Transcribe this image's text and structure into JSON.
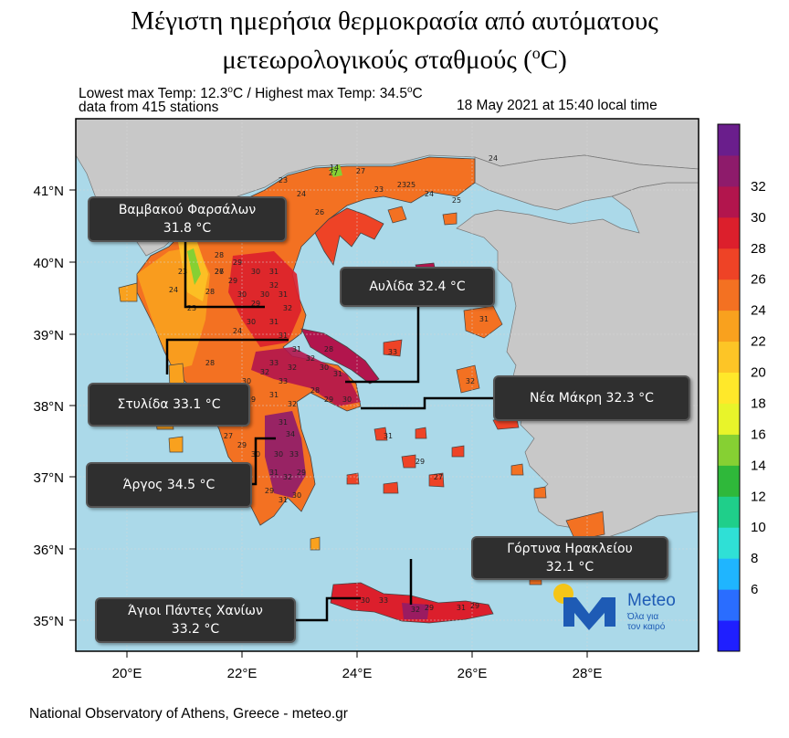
{
  "title": {
    "line1": "Μέγιστη ημερήσια θερμοκρασία από αυτόματους",
    "line2": "μετεωρολογικούς σταθμούς (",
    "unit_sup": "o",
    "unit": "C)"
  },
  "subtitle": {
    "temps_a": "Lowest max Temp: 12.3",
    "temps_b": "C / Highest max Temp: 34.5",
    "temps_c": "C",
    "deg": "o",
    "stations": "data from 415 stations",
    "datetime": "18 May 2021 at 15:40 local time"
  },
  "map": {
    "lat_labels": [
      "41°N",
      "40°N",
      "39°N",
      "38°N",
      "37°N",
      "36°N",
      "35°N"
    ],
    "lon_labels": [
      "20°E",
      "22°E",
      "24°E",
      "26°E",
      "28°E"
    ],
    "colors": {
      "sea": "#abd9e9",
      "neighbor_land": "#c8c8c8",
      "frame": "#000000"
    }
  },
  "colorbar": {
    "labels": [
      "32",
      "30",
      "28",
      "26",
      "24",
      "22",
      "20",
      "18",
      "16",
      "14",
      "12",
      "10",
      "8",
      "6"
    ],
    "colors": [
      "#1f1fff",
      "#2a6dff",
      "#1fb5ff",
      "#2fe0d6",
      "#1fcf8a",
      "#2fb83a",
      "#86d033",
      "#e8f42a",
      "#ffe82a",
      "#fdc526",
      "#f9a11e",
      "#f37122",
      "#ee4326",
      "#dc1f2c",
      "#b2154d",
      "#8e1b6b",
      "#6a1e8c"
    ]
  },
  "callouts": [
    {
      "line1": "Βαμβακού Φαρσάλων",
      "line2": "31.8 °C"
    },
    {
      "line1": "Αυλίδα  32.4 °C",
      "line2": ""
    },
    {
      "line1": "Στυλίδα  33.1 °C",
      "line2": ""
    },
    {
      "line1": "Νέα Μάκρη 32.3 °C",
      "line2": ""
    },
    {
      "line1": "Άργος  34.5 °C",
      "line2": ""
    },
    {
      "line1": "Γόρτυνα  Ηρακλείου",
      "line2": "32.1 °C"
    },
    {
      "line1": "Άγιοι Πάντες Χανίων",
      "line2": "33.2 °C"
    }
  ],
  "logo": {
    "name": "Meteo",
    "tagline_1": "Όλα για",
    "tagline_2": "τον καιρό"
  },
  "station_values": [
    "27",
    "23",
    "25",
    "14",
    "24",
    "25",
    "23",
    "24",
    "27",
    "26",
    "23",
    "24",
    "28",
    "29",
    "30",
    "31",
    "32",
    "30",
    "29",
    "27",
    "31",
    "23",
    "24",
    "29",
    "28",
    "30",
    "32",
    "31",
    "30",
    "24",
    "31",
    "31",
    "32",
    "28",
    "30",
    "31",
    "33",
    "32",
    "33",
    "32",
    "30",
    "28",
    "29",
    "30",
    "31",
    "32",
    "29",
    "31",
    "34",
    "33",
    "30",
    "31",
    "32",
    "29",
    "30",
    "29",
    "31",
    "30",
    "26",
    "23",
    "28",
    "32",
    "27",
    "29",
    "24",
    "30",
    "31",
    "32",
    "33",
    "31",
    "29",
    "27",
    "30",
    "33",
    "29",
    "32",
    "31",
    "29"
  ],
  "footer": "National Observatory of Athens, Greece - meteo.gr"
}
